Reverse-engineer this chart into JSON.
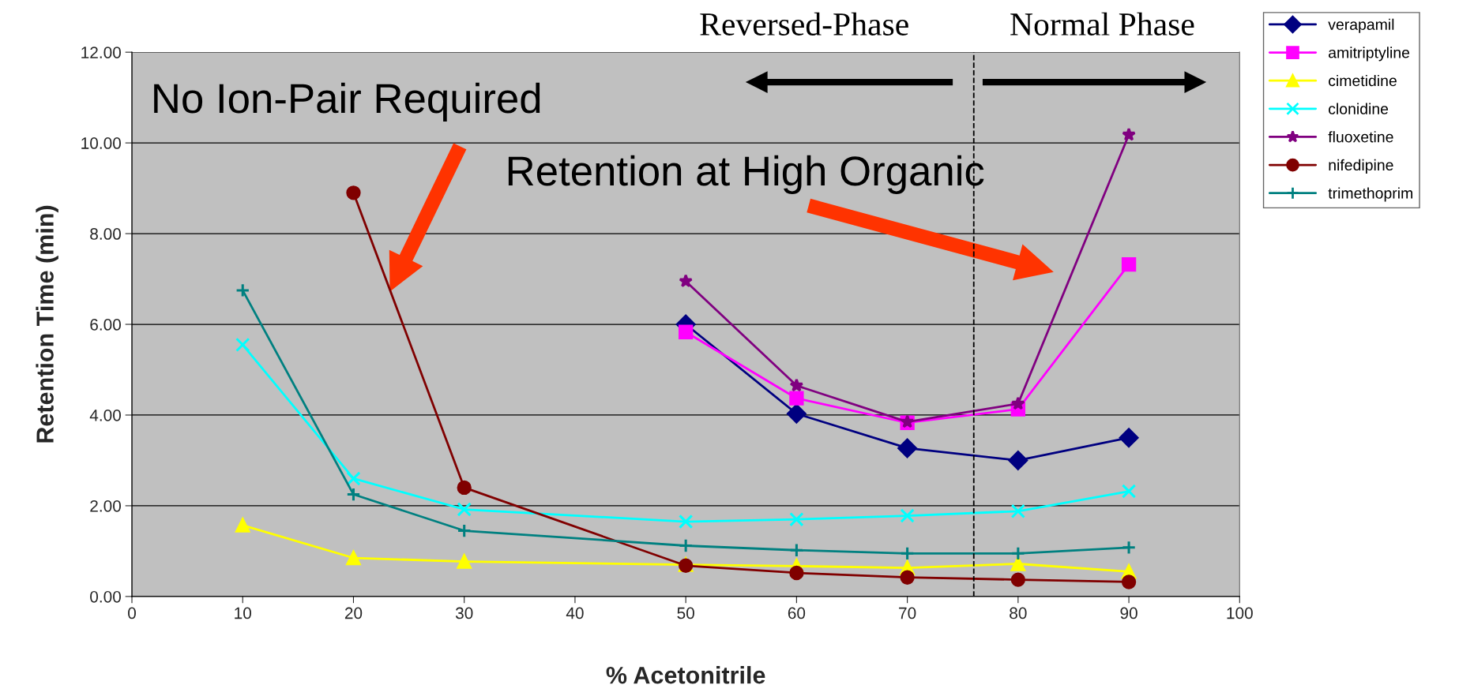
{
  "chart_data": {
    "type": "line",
    "xlabel": "% Acetonitrile",
    "ylabel": "Retention Time (min)",
    "xlim": [
      0,
      100
    ],
    "xticks": [
      0,
      10,
      20,
      30,
      40,
      50,
      60,
      70,
      80,
      90,
      100
    ],
    "ylim": [
      0,
      12
    ],
    "yticks": [
      {
        "value": 0,
        "label": "0.00"
      },
      {
        "value": 2,
        "label": "2.00"
      },
      {
        "value": 4,
        "label": "4.00"
      },
      {
        "value": 6,
        "label": "6.00"
      },
      {
        "value": 8,
        "label": "8.00"
      },
      {
        "value": 10,
        "label": "10.00"
      },
      {
        "value": 12,
        "label": "12.00"
      }
    ],
    "grid": "y",
    "legend": "top right",
    "series": [
      {
        "name": "verapamil",
        "color": "#000080",
        "marker": "diamond",
        "x": [
          50,
          60,
          70,
          80,
          90
        ],
        "values": [
          6.0,
          4.03,
          3.27,
          3.0,
          3.5
        ]
      },
      {
        "name": "amitriptyline",
        "color": "#ff00ff",
        "marker": "square",
        "x": [
          50,
          60,
          70,
          80,
          90
        ],
        "values": [
          5.83,
          4.37,
          3.83,
          4.13,
          7.32
        ]
      },
      {
        "name": "cimetidine",
        "color": "#ffff00",
        "marker": "triangle",
        "x": [
          10,
          20,
          30,
          50,
          60,
          70,
          80,
          90
        ],
        "values": [
          1.57,
          0.85,
          0.77,
          0.7,
          0.67,
          0.63,
          0.72,
          0.55
        ]
      },
      {
        "name": "clonidine",
        "color": "#00ffff",
        "marker": "cross",
        "x": [
          10,
          20,
          30,
          50,
          60,
          70,
          80,
          90
        ],
        "values": [
          5.55,
          2.6,
          1.92,
          1.65,
          1.7,
          1.78,
          1.88,
          2.32
        ]
      },
      {
        "name": "fluoxetine",
        "color": "#800080",
        "marker": "star",
        "x": [
          50,
          60,
          70,
          80,
          90
        ],
        "values": [
          6.95,
          4.65,
          3.85,
          4.25,
          10.18
        ]
      },
      {
        "name": "nifedipine",
        "color": "#800000",
        "marker": "circle",
        "x": [
          20,
          30,
          50,
          60,
          70,
          80,
          90
        ],
        "values": [
          8.9,
          2.4,
          0.68,
          0.52,
          0.42,
          0.37,
          0.32
        ]
      },
      {
        "name": "trimethoprim",
        "color": "#008080",
        "marker": "cross",
        "x": [
          10,
          20,
          30,
          50,
          60,
          70,
          80,
          90
        ],
        "values": [
          6.75,
          2.25,
          1.45,
          1.12,
          1.02,
          0.95,
          0.95,
          1.08
        ]
      }
    ],
    "ref_lines": [
      {
        "axis": "x",
        "value": 76,
        "color": "#000000",
        "line_style": "dashed"
      }
    ],
    "annotations": [
      "No Ion-Pair Required",
      "Retention at High Organic",
      "Reversed-Phase",
      "Normal Phase"
    ]
  }
}
